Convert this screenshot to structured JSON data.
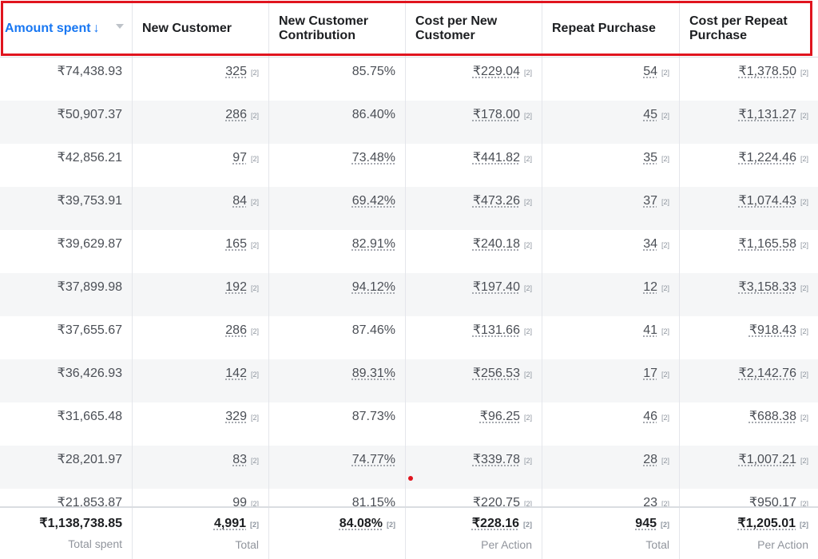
{
  "header": {
    "columns": [
      {
        "label": "Amount spent",
        "sorted": true,
        "arrow": "↓"
      },
      {
        "label": "New Customer"
      },
      {
        "label": "New Customer Contribution"
      },
      {
        "label": "Cost per New Customer"
      },
      {
        "label": "Repeat Purchase"
      },
      {
        "label": "Cost per Repeat Purchase"
      }
    ]
  },
  "footnote_marker": "[2]",
  "rows": [
    [
      "₹74,438.93",
      "325",
      "85.75%",
      "₹229.04",
      "54",
      "₹1,378.50"
    ],
    [
      "₹50,907.37",
      "286",
      "86.40%",
      "₹178.00",
      "45",
      "₹1,131.27"
    ],
    [
      "₹42,856.21",
      "97",
      "73.48%",
      "₹441.82",
      "35",
      "₹1,224.46"
    ],
    [
      "₹39,753.91",
      "84",
      "69.42%",
      "₹473.26",
      "37",
      "₹1,074.43"
    ],
    [
      "₹39,629.87",
      "165",
      "82.91%",
      "₹240.18",
      "34",
      "₹1,165.58"
    ],
    [
      "₹37,899.98",
      "192",
      "94.12%",
      "₹197.40",
      "12",
      "₹3,158.33"
    ],
    [
      "₹37,655.67",
      "286",
      "87.46%",
      "₹131.66",
      "41",
      "₹918.43"
    ],
    [
      "₹36,426.93",
      "142",
      "89.31%",
      "₹256.53",
      "17",
      "₹2,142.76"
    ],
    [
      "₹31,665.48",
      "329",
      "87.73%",
      "₹96.25",
      "46",
      "₹688.38"
    ],
    [
      "₹28,201.97",
      "83",
      "74.77%",
      "₹339.78",
      "28",
      "₹1,007.21"
    ],
    [
      "₹21,853.87",
      "99",
      "81.15%",
      "₹220.75",
      "23",
      "₹950.17"
    ]
  ],
  "totals": [
    {
      "value": "₹1,138,738.85",
      "label": "Total spent"
    },
    {
      "value": "4,991",
      "label": "Total"
    },
    {
      "value": "84.08%",
      "label": ""
    },
    {
      "value": "₹228.16",
      "label": "Per Action"
    },
    {
      "value": "945",
      "label": "Total"
    },
    {
      "value": "₹1,205.01",
      "label": "Per Action"
    }
  ],
  "colors": {
    "sort_accent": "#1877f2",
    "highlight_border": "#e0141e",
    "alt_row": "#f5f6f7"
  }
}
